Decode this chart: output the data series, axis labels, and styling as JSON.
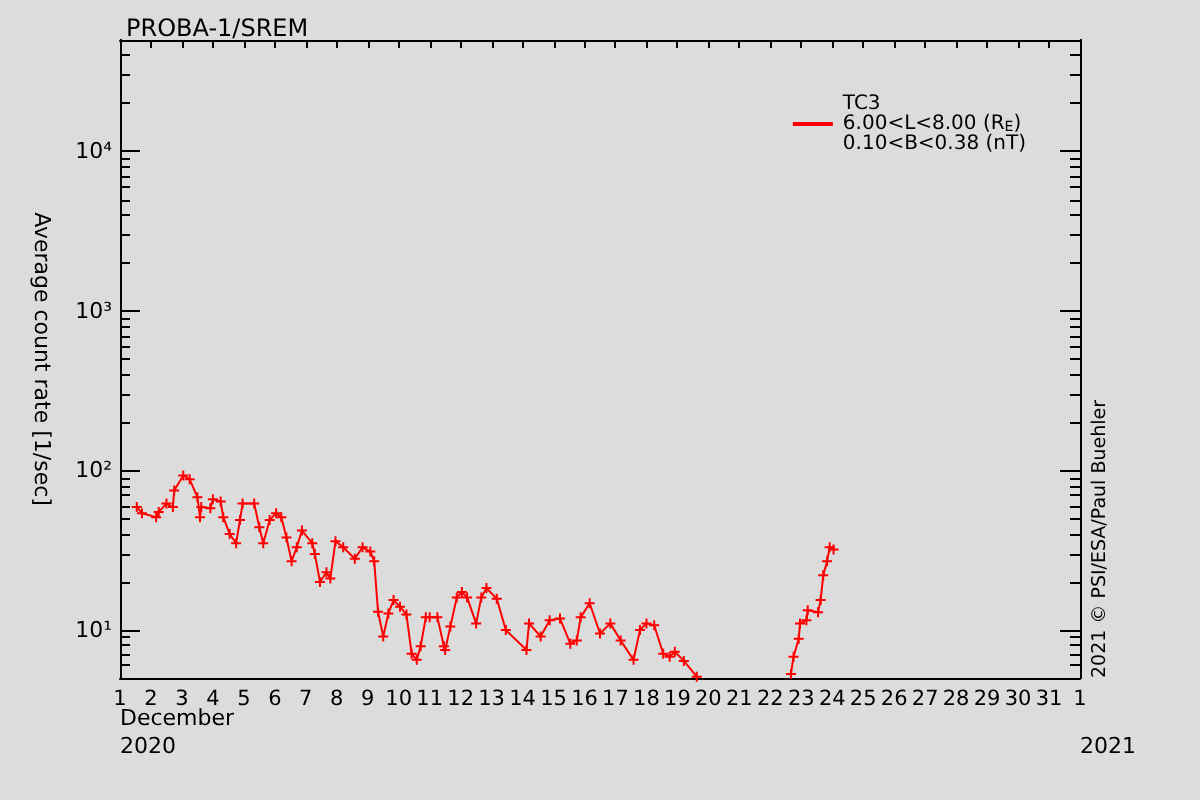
{
  "chart_data": {
    "type": "line",
    "title": "PROBA-1/SREM",
    "ylabel": "Average count rate [1/sec]",
    "xlabel": "December 2020",
    "annotations": [
      "2021",
      "2021 © PSI/ESA/Paul Buehler"
    ],
    "x": [
      "2020-12-01T13:00",
      "2020-12-01T17:00",
      "2020-12-02T04:00",
      "2020-12-02T06:00",
      "2020-12-02T12:00",
      "2020-12-02T17:00",
      "2020-12-02T18:00",
      "2020-12-03T01:00",
      "2020-12-03T06:00",
      "2020-12-03T12:00",
      "2020-12-03T14:00",
      "2020-12-03T15:00",
      "2020-12-03T22:00",
      "2020-12-04T00:00",
      "2020-12-04T06:00",
      "2020-12-04T08:00",
      "2020-12-04T13:00",
      "2020-12-04T18:00",
      "2020-12-04T21:00",
      "2020-12-04T23:00",
      "2020-12-05T08:00",
      "2020-12-05T12:00",
      "2020-12-05T15:00",
      "2020-12-05T20:00",
      "2020-12-06T01:00",
      "2020-12-06T05:00",
      "2020-12-06T09:00",
      "2020-12-06T13:00",
      "2020-12-06T17:00",
      "2020-12-06T21:00",
      "2020-12-07T05:00",
      "2020-12-07T07:00",
      "2020-12-07T11:00",
      "2020-12-07T16:00",
      "2020-12-07T19:00",
      "2020-12-07T23:00",
      "2020-12-08T05:00",
      "2020-12-08T14:00",
      "2020-12-08T20:00",
      "2020-12-09T02:00",
      "2020-12-09T05:00",
      "2020-12-09T08:00",
      "2020-12-09T12:00",
      "2020-12-09T16:00",
      "2020-12-09T20:00",
      "2020-12-10T01:00",
      "2020-12-10T06:00",
      "2020-12-10T10:00",
      "2020-12-10T14:00",
      "2020-12-10T17:00",
      "2020-12-10T21:00",
      "2020-12-11T00:00",
      "2020-12-11T06:00",
      "2020-12-11T11:00",
      "2020-12-11T12:00",
      "2020-12-11T16:00",
      "2020-12-11T21:00",
      "2020-12-12T01:00",
      "2020-12-12T05:00",
      "2020-12-12T12:00",
      "2020-12-12T16:00",
      "2020-12-12T20:00",
      "2020-12-13T04:00",
      "2020-12-13T11:00",
      "2020-12-14T03:00",
      "2020-12-14T05:00",
      "2020-12-14T14:00",
      "2020-12-14T21:00",
      "2020-12-15T05:00",
      "2020-12-15T13:00",
      "2020-12-15T18:00",
      "2020-12-15T21:00",
      "2020-12-16T04:00",
      "2020-12-16T12:00",
      "2020-12-16T20:00",
      "2020-12-17T04:00",
      "2020-12-17T14:00",
      "2020-12-17T19:00",
      "2020-12-18T00:00",
      "2020-12-18T06:00",
      "2020-12-18T13:00",
      "2020-12-18T18:00",
      "2020-12-18T22:00",
      "2020-12-19T05:00",
      "2020-12-19T15:00",
      "2020-12-21T00:00",
      "2020-12-22T16:00",
      "2020-12-22T18:00",
      "2020-12-22T22:00",
      "2020-12-22T23:00",
      "2020-12-23T04:00",
      "2020-12-23T05:00",
      "2020-12-23T13:00",
      "2020-12-23T15:00",
      "2020-12-23T17:00",
      "2020-12-23T20:00",
      "2020-12-23T22:00",
      "2020-12-24T01:00"
    ],
    "series": [
      {
        "name": "TC3\n6.00<L<8.00 (R$_{E}$)\n0.10<B<0.38 (nT)",
        "color": "#ff0000",
        "values": [
          59,
          54,
          51,
          55,
          62,
          59,
          75,
          93,
          88,
          68,
          51,
          59,
          58,
          66,
          64,
          51,
          40,
          35,
          49,
          62,
          62,
          44,
          35,
          49,
          54,
          51,
          38,
          27,
          33,
          42,
          35,
          30,
          20,
          23,
          21,
          36,
          33,
          28,
          33,
          31,
          27,
          13,
          9.1,
          12.7,
          15.4,
          14,
          12.5,
          7.1,
          6.5,
          7.9,
          12,
          12,
          12,
          7.9,
          7.5,
          10.5,
          16,
          17.3,
          16,
          11,
          16,
          18.3,
          15.7,
          10,
          7.5,
          11,
          9.1,
          11.5,
          11.8,
          8.2,
          8.6,
          12,
          14.7,
          9.5,
          11,
          8.6,
          6.5,
          10,
          11,
          10.7,
          7.1,
          6.8,
          7.3,
          6.4,
          5.1,
          null,
          5.3,
          6.8,
          8.8,
          11,
          11.5,
          13.3,
          12.9,
          15.4,
          22,
          27,
          33,
          32
        ]
      }
    ],
    "xlim": [
      "2020-12-01",
      "2021-01-01"
    ],
    "xticks": [
      {
        "value": "2020-12-01",
        "label": "1"
      },
      {
        "value": "2020-12-02",
        "label": "2"
      },
      {
        "value": "2020-12-03",
        "label": "3"
      },
      {
        "value": "2020-12-04",
        "label": "4"
      },
      {
        "value": "2020-12-05",
        "label": "5"
      },
      {
        "value": "2020-12-06",
        "label": "6"
      },
      {
        "value": "2020-12-07",
        "label": "7"
      },
      {
        "value": "2020-12-08",
        "label": "8"
      },
      {
        "value": "2020-12-09",
        "label": "9"
      },
      {
        "value": "2020-12-10",
        "label": "10"
      },
      {
        "value": "2020-12-11",
        "label": "11"
      },
      {
        "value": "2020-12-12",
        "label": "12"
      },
      {
        "value": "2020-12-13",
        "label": "13"
      },
      {
        "value": "2020-12-14",
        "label": "14"
      },
      {
        "value": "2020-12-15",
        "label": "15"
      },
      {
        "value": "2020-12-16",
        "label": "16"
      },
      {
        "value": "2020-12-17",
        "label": "17"
      },
      {
        "value": "2020-12-18",
        "label": "18"
      },
      {
        "value": "2020-12-19",
        "label": "19"
      },
      {
        "value": "2020-12-20",
        "label": "20"
      },
      {
        "value": "2020-12-21",
        "label": "21"
      },
      {
        "value": "2020-12-22",
        "label": "22"
      },
      {
        "value": "2020-12-23",
        "label": "23"
      },
      {
        "value": "2020-12-24",
        "label": "24"
      },
      {
        "value": "2020-12-25",
        "label": "25"
      },
      {
        "value": "2020-12-26",
        "label": "26"
      },
      {
        "value": "2020-12-27",
        "label": "27"
      },
      {
        "value": "2020-12-28",
        "label": "28"
      },
      {
        "value": "2020-12-29",
        "label": "29"
      },
      {
        "value": "2020-12-30",
        "label": "30"
      },
      {
        "value": "2020-12-31",
        "label": "31"
      },
      {
        "value": "2021-01-01",
        "label": "1"
      }
    ],
    "ylim": [
      5,
      50000
    ],
    "yticks": [
      {
        "value": 10,
        "label": "10¹"
      },
      {
        "value": 100,
        "label": "10²"
      },
      {
        "value": 1000,
        "label": "10³"
      },
      {
        "value": 10000,
        "label": "10⁴"
      }
    ],
    "log": "y",
    "grid": false,
    "legend": "top right",
    "marker": "cross",
    "line_style": "solid"
  }
}
